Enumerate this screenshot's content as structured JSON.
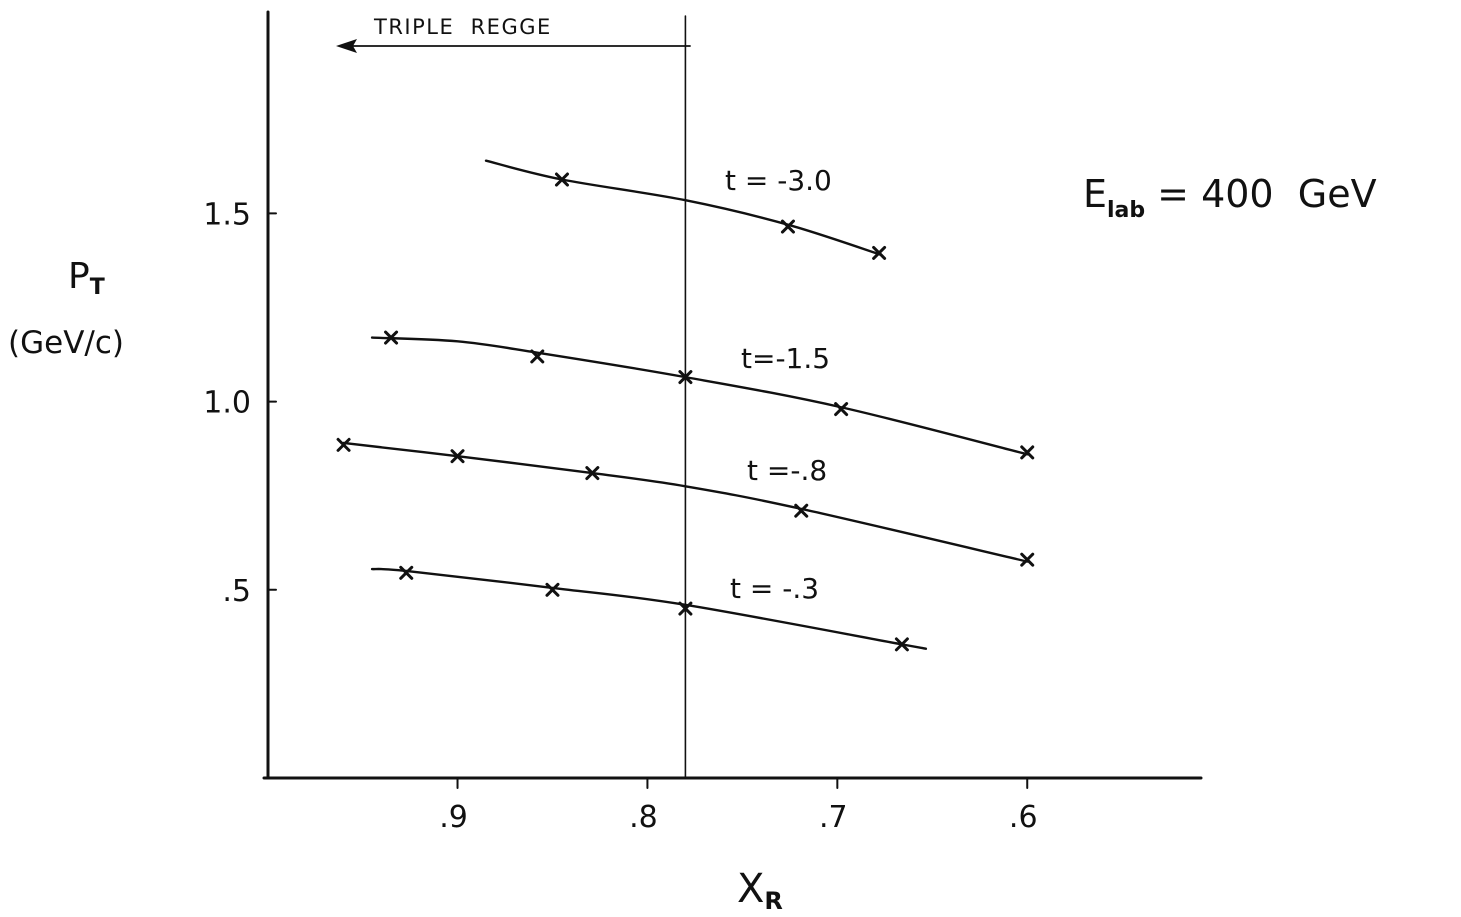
{
  "chart_data": {
    "type": "line",
    "x_axis": {
      "label": "X",
      "label_sub": "R",
      "reversed": true,
      "range": [
        0.9998,
        0.5085
      ],
      "ticks": [
        {
          "value": 0.9,
          "label": ".9"
        },
        {
          "value": 0.8,
          "label": ".8"
        },
        {
          "value": 0.7,
          "label": ".7"
        },
        {
          "value": 0.6,
          "label": ".6"
        }
      ]
    },
    "y_axis": {
      "label": "P",
      "label_sub": "T",
      "unit": "(GeV/c)",
      "range": [
        0,
        2.035
      ],
      "ticks": [
        {
          "value": 0.5,
          "label": ".5"
        },
        {
          "value": 1.0,
          "label": "1.0"
        },
        {
          "value": 1.5,
          "label": "1.5"
        }
      ]
    },
    "grid": false,
    "annotation": {
      "text": "E",
      "sub": "lab",
      "rest": "= 400  GeV"
    },
    "region": {
      "label": "TRIPLE  REGGE",
      "boundary_x": 0.78
    },
    "series": [
      {
        "name": "t = -3.0",
        "curve": [
          [
            0.885,
            1.64
          ],
          [
            0.845,
            1.59
          ],
          [
            0.78,
            1.535
          ],
          [
            0.726,
            1.47
          ],
          [
            0.677,
            1.39
          ]
        ],
        "points": [
          [
            0.845,
            1.59
          ],
          [
            0.726,
            1.465
          ],
          [
            0.678,
            1.395
          ]
        ]
      },
      {
        "name": "t=-1.5",
        "curve": [
          [
            0.945,
            1.17
          ],
          [
            0.9,
            1.16
          ],
          [
            0.858,
            1.13
          ],
          [
            0.78,
            1.065
          ],
          [
            0.698,
            0.985
          ],
          [
            0.6,
            0.86
          ]
        ],
        "points": [
          [
            0.935,
            1.17
          ],
          [
            0.858,
            1.12
          ],
          [
            0.78,
            1.065
          ],
          [
            0.698,
            0.98
          ],
          [
            0.6,
            0.865
          ]
        ]
      },
      {
        "name": "t =-.8",
        "curve": [
          [
            0.96,
            0.89
          ],
          [
            0.9,
            0.855
          ],
          [
            0.829,
            0.81
          ],
          [
            0.78,
            0.775
          ],
          [
            0.719,
            0.715
          ],
          [
            0.6,
            0.575
          ]
        ],
        "points": [
          [
            0.96,
            0.885
          ],
          [
            0.9,
            0.855
          ],
          [
            0.829,
            0.81
          ],
          [
            0.719,
            0.71
          ],
          [
            0.6,
            0.58
          ]
        ]
      },
      {
        "name": "t = -.3",
        "curve": [
          [
            0.945,
            0.555
          ],
          [
            0.927,
            0.55
          ],
          [
            0.85,
            0.505
          ],
          [
            0.78,
            0.46
          ],
          [
            0.666,
            0.355
          ],
          [
            0.655,
            0.345
          ]
        ],
        "points": [
          [
            0.927,
            0.545
          ],
          [
            0.85,
            0.5
          ],
          [
            0.78,
            0.45
          ],
          [
            0.666,
            0.355
          ]
        ]
      }
    ]
  }
}
